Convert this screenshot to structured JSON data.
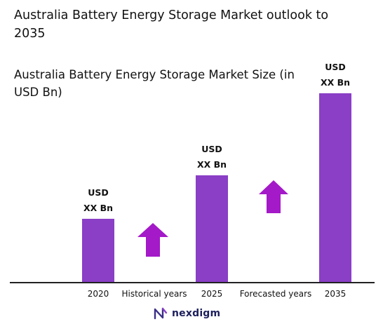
{
  "header": {
    "title": "Australia Battery Energy Storage Market outlook to 2035",
    "subtitle": "Australia Battery Energy Storage Market Size (in USD Bn)"
  },
  "chart_data": {
    "type": "bar",
    "categories": [
      "2020",
      "2025",
      "2035"
    ],
    "values": [
      1.0,
      1.7,
      3.0
    ],
    "value_labels": [
      {
        "line1": "USD",
        "line2": "XX Bn"
      },
      {
        "line1": "USD",
        "line2": "XX Bn"
      },
      {
        "line1": "USD",
        "line2": "XX Bn"
      }
    ],
    "period_labels": [
      "Historical years",
      "Forecasted years"
    ],
    "title": "Australia Battery Energy Storage Market outlook to 2035",
    "ylabel": "",
    "ylim": [
      0,
      3.0
    ],
    "grid": false,
    "bar_color": "#8a3fc6",
    "arrow_color": "#a419c8"
  },
  "brand": {
    "name": "nexdigm",
    "icon": "nexdigm-logo-icon"
  }
}
